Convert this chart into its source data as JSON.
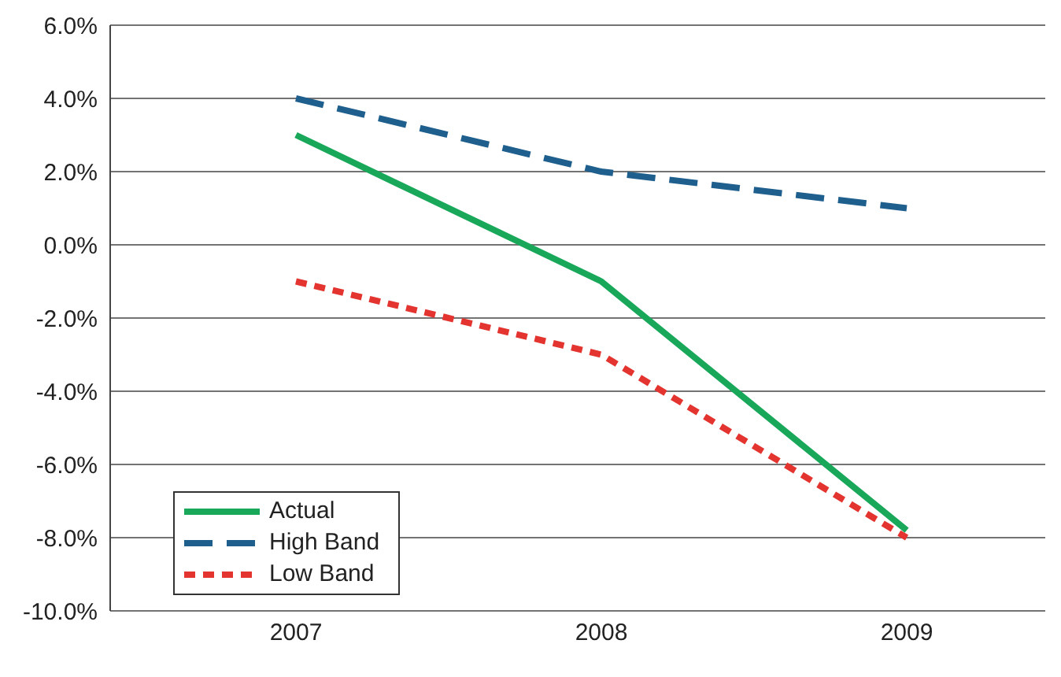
{
  "chart_data": {
    "type": "line",
    "categories": [
      "2007",
      "2008",
      "2009"
    ],
    "series": [
      {
        "name": "Actual",
        "color": "#19a85a",
        "values": [
          3.0,
          -1.0,
          -7.8
        ],
        "line_style": "solid"
      },
      {
        "name": "High Band",
        "color": "#1f5f8e",
        "values": [
          4.0,
          2.0,
          1.0
        ],
        "line_style": "dashed"
      },
      {
        "name": "Low Band",
        "color": "#e3342f",
        "values": [
          -1.0,
          -3.0,
          -8.0
        ],
        "line_style": "dotted"
      }
    ],
    "ylim": [
      -10,
      6
    ],
    "yticks": [
      {
        "value": -10,
        "label": "-10.0%"
      },
      {
        "value": -8,
        "label": "-8.0%"
      },
      {
        "value": -6,
        "label": "-6.0%"
      },
      {
        "value": -4,
        "label": "-4.0%"
      },
      {
        "value": -2,
        "label": "-2.0%"
      },
      {
        "value": 0,
        "label": "0.0%"
      },
      {
        "value": 2,
        "label": "2.0%"
      },
      {
        "value": 4,
        "label": "4.0%"
      },
      {
        "value": 6,
        "label": "6.0%"
      }
    ],
    "grid": "y",
    "legend": "bottom left",
    "marker": "none"
  }
}
